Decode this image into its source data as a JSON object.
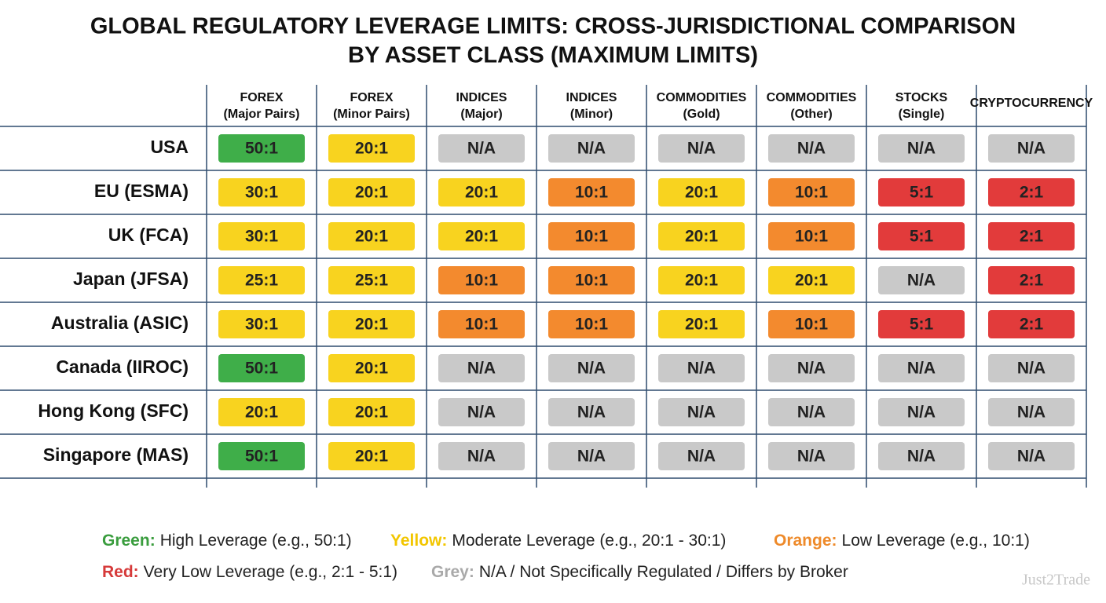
{
  "header": {
    "title": [
      "GLOBAL REGULATORY LEVERAGE LIMITS: CROSS-JURISDICTIONAL COMPARISON",
      "BY ASSET CLASS (MAXIMUM LIMITS)"
    ]
  },
  "table": {
    "columns": [
      [
        "FOREX",
        "(Major Pairs)"
      ],
      [
        "FOREX",
        "(Minor Pairs)"
      ],
      [
        "INDICES",
        "(Major)"
      ],
      [
        "INDICES",
        "(Minor)"
      ],
      [
        "COMMODITIES",
        "(Gold)"
      ],
      [
        "COMMODITIES",
        "(Other)"
      ],
      [
        "STOCKS",
        "(Single)"
      ],
      [
        "CRYPTOCURRENCY"
      ]
    ],
    "rows": [
      {
        "label": "USA",
        "cells": [
          {
            "text": "50:1",
            "color": "#3fae49"
          },
          {
            "text": "20:1",
            "color": "#f8d31f"
          },
          {
            "text": "N/A",
            "color": "#c9c9c9"
          },
          {
            "text": "N/A",
            "color": "#c9c9c9"
          },
          {
            "text": "N/A",
            "color": "#c9c9c9"
          },
          {
            "text": "N/A",
            "color": "#c9c9c9"
          },
          {
            "text": "N/A",
            "color": "#c9c9c9"
          },
          {
            "text": "N/A",
            "color": "#c9c9c9"
          }
        ]
      },
      {
        "label": "EU (ESMA)",
        "cells": [
          {
            "text": "30:1",
            "color": "#f8d31f"
          },
          {
            "text": "20:1",
            "color": "#f8d31f"
          },
          {
            "text": "20:1",
            "color": "#f8d31f"
          },
          {
            "text": "10:1",
            "color": "#f38a2e"
          },
          {
            "text": "20:1",
            "color": "#f8d31f"
          },
          {
            "text": "10:1",
            "color": "#f38a2e"
          },
          {
            "text": "5:1",
            "color": "#e23b3b"
          },
          {
            "text": "2:1",
            "color": "#e23b3b"
          }
        ]
      },
      {
        "label": "UK (FCA)",
        "cells": [
          {
            "text": "30:1",
            "color": "#f8d31f"
          },
          {
            "text": "20:1",
            "color": "#f8d31f"
          },
          {
            "text": "20:1",
            "color": "#f8d31f"
          },
          {
            "text": "10:1",
            "color": "#f38a2e"
          },
          {
            "text": "20:1",
            "color": "#f8d31f"
          },
          {
            "text": "10:1",
            "color": "#f38a2e"
          },
          {
            "text": "5:1",
            "color": "#e23b3b"
          },
          {
            "text": "2:1",
            "color": "#e23b3b"
          }
        ]
      },
      {
        "label": "Japan (JFSA)",
        "cells": [
          {
            "text": "25:1",
            "color": "#f8d31f"
          },
          {
            "text": "25:1",
            "color": "#f8d31f"
          },
          {
            "text": "10:1",
            "color": "#f38a2e"
          },
          {
            "text": "10:1",
            "color": "#f38a2e"
          },
          {
            "text": "20:1",
            "color": "#f8d31f"
          },
          {
            "text": "20:1",
            "color": "#f8d31f"
          },
          {
            "text": "N/A",
            "color": "#c9c9c9"
          },
          {
            "text": "2:1",
            "color": "#e23b3b"
          }
        ]
      },
      {
        "label": "Australia (ASIC)",
        "cells": [
          {
            "text": "30:1",
            "color": "#f8d31f"
          },
          {
            "text": "20:1",
            "color": "#f8d31f"
          },
          {
            "text": "10:1",
            "color": "#f38a2e"
          },
          {
            "text": "10:1",
            "color": "#f38a2e"
          },
          {
            "text": "20:1",
            "color": "#f8d31f"
          },
          {
            "text": "10:1",
            "color": "#f38a2e"
          },
          {
            "text": "5:1",
            "color": "#e23b3b"
          },
          {
            "text": "2:1",
            "color": "#e23b3b"
          }
        ]
      },
      {
        "label": "Canada (IIROC)",
        "cells": [
          {
            "text": "50:1",
            "color": "#3fae49"
          },
          {
            "text": "20:1",
            "color": "#f8d31f"
          },
          {
            "text": "N/A",
            "color": "#c9c9c9"
          },
          {
            "text": "N/A",
            "color": "#c9c9c9"
          },
          {
            "text": "N/A",
            "color": "#c9c9c9"
          },
          {
            "text": "N/A",
            "color": "#c9c9c9"
          },
          {
            "text": "N/A",
            "color": "#c9c9c9"
          },
          {
            "text": "N/A",
            "color": "#c9c9c9"
          }
        ]
      },
      {
        "label": "Hong Kong (SFC)",
        "cells": [
          {
            "text": "20:1",
            "color": "#f8d31f"
          },
          {
            "text": "20:1",
            "color": "#f8d31f"
          },
          {
            "text": "N/A",
            "color": "#c9c9c9"
          },
          {
            "text": "N/A",
            "color": "#c9c9c9"
          },
          {
            "text": "N/A",
            "color": "#c9c9c9"
          },
          {
            "text": "N/A",
            "color": "#c9c9c9"
          },
          {
            "text": "N/A",
            "color": "#c9c9c9"
          },
          {
            "text": "N/A",
            "color": "#c9c9c9"
          }
        ]
      },
      {
        "label": "Singapore (MAS)",
        "cells": [
          {
            "text": "50:1",
            "color": "#3fae49"
          },
          {
            "text": "20:1",
            "color": "#f8d31f"
          },
          {
            "text": "N/A",
            "color": "#c9c9c9"
          },
          {
            "text": "N/A",
            "color": "#c9c9c9"
          },
          {
            "text": "N/A",
            "color": "#c9c9c9"
          },
          {
            "text": "N/A",
            "color": "#c9c9c9"
          },
          {
            "text": "N/A",
            "color": "#c9c9c9"
          },
          {
            "text": "N/A",
            "color": "#c9c9c9"
          }
        ]
      }
    ]
  },
  "legend": [
    [
      {
        "key": "Green:",
        "text": "High Leverage (e.g., 50:1)",
        "color": "#3a9d3e"
      },
      {
        "key": "Yellow:",
        "text": "Moderate Leverage (e.g., 20:1 - 30:1)",
        "color": "#f2c600"
      },
      {
        "key": "Orange:",
        "text": "Low Leverage (e.g., 10:1)",
        "color": "#ee8a2a"
      }
    ],
    [
      {
        "key": "Red:",
        "text": "Very Low Leverage (e.g., 2:1 - 5:1)",
        "color": "#d63a3a"
      },
      {
        "key": "Grey:",
        "text": "N/A / Not Specifically Regulated / Differs by Broker",
        "color": "#a9a9a9"
      }
    ]
  ],
  "watermark": "Just2Trade"
}
